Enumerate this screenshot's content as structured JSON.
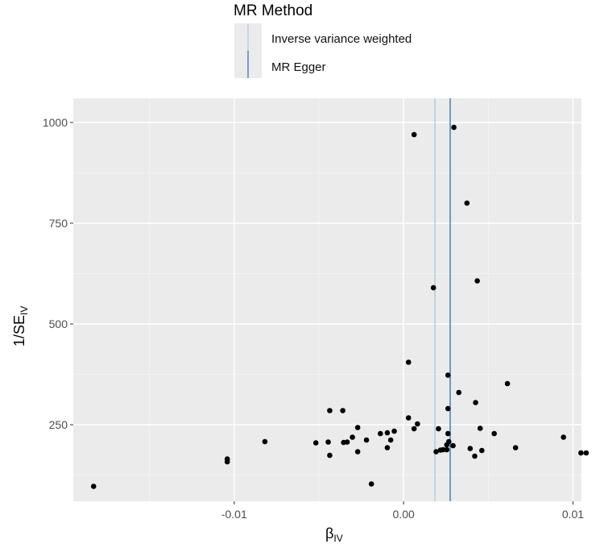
{
  "chart_data": {
    "type": "scatter",
    "title": "",
    "legend": {
      "title": "MR Method",
      "placement": "top",
      "entries": [
        {
          "name": "Inverse variance weighted",
          "color": "#9ecae1"
        },
        {
          "name": "MR Egger",
          "color": "#2171b5"
        }
      ]
    },
    "xlabel": {
      "main": "β",
      "sub": "IV"
    },
    "ylabel": {
      "main": "1/SE",
      "sub": "IV"
    },
    "xlim": [
      -0.0195,
      0.0105
    ],
    "ylim": [
      60,
      1060
    ],
    "xticks": [
      -0.01,
      0,
      0.01
    ],
    "xtick_labels": [
      "-0.01",
      "0.00",
      "0.01"
    ],
    "yticks": [
      250,
      500,
      750,
      1000
    ],
    "ytick_labels": [
      "250",
      "500",
      "750",
      "1000"
    ],
    "panel_background": "#ebebeb",
    "grid": true,
    "point_color": "#000000",
    "vlines": [
      {
        "method": "Inverse variance weighted",
        "x": 0.00185,
        "color": "#9ecae1"
      },
      {
        "method": "MR Egger",
        "x": 0.00275,
        "color": "#2171b5"
      }
    ],
    "points": [
      {
        "x": 0.00062,
        "y": 970
      },
      {
        "x": 0.00297,
        "y": 988
      },
      {
        "x": 0.00374,
        "y": 800
      },
      {
        "x": 0.00176,
        "y": 590
      },
      {
        "x": 0.00435,
        "y": 607
      },
      {
        "x": 0.00029,
        "y": 405
      },
      {
        "x": 0.00262,
        "y": 373
      },
      {
        "x": 0.00613,
        "y": 352
      },
      {
        "x": 0.00326,
        "y": 330
      },
      {
        "x": 0.00425,
        "y": 305
      },
      {
        "x": 0.00262,
        "y": 290
      },
      {
        "x": -0.00436,
        "y": 285
      },
      {
        "x": -0.00359,
        "y": 285
      },
      {
        "x": 0.00029,
        "y": 267
      },
      {
        "x": 0.00082,
        "y": 252
      },
      {
        "x": -0.00271,
        "y": 243
      },
      {
        "x": 0.00062,
        "y": 240
      },
      {
        "x": 0.00206,
        "y": 240
      },
      {
        "x": 0.00452,
        "y": 241
      },
      {
        "x": -0.00055,
        "y": 234
      },
      {
        "x": -0.00096,
        "y": 230
      },
      {
        "x": 0.00262,
        "y": 228
      },
      {
        "x": -0.00137,
        "y": 228
      },
      {
        "x": 0.00535,
        "y": 228
      },
      {
        "x": 0.00944,
        "y": 219
      },
      {
        "x": -0.00302,
        "y": 219
      },
      {
        "x": -0.00076,
        "y": 212
      },
      {
        "x": -0.00219,
        "y": 212
      },
      {
        "x": 0.00267,
        "y": 208
      },
      {
        "x": -0.00819,
        "y": 208
      },
      {
        "x": -0.00445,
        "y": 207
      },
      {
        "x": -0.00354,
        "y": 206
      },
      {
        "x": -0.00518,
        "y": 205
      },
      {
        "x": -0.00333,
        "y": 207
      },
      {
        "x": 0.00255,
        "y": 200
      },
      {
        "x": 0.00292,
        "y": 198
      },
      {
        "x": -0.00096,
        "y": 193
      },
      {
        "x": 0.00661,
        "y": 193
      },
      {
        "x": 0.00393,
        "y": 191
      },
      {
        "x": 0.00233,
        "y": 188
      },
      {
        "x": 0.00218,
        "y": 187
      },
      {
        "x": 0.00462,
        "y": 186
      },
      {
        "x": 0.00255,
        "y": 188
      },
      {
        "x": -0.00271,
        "y": 183
      },
      {
        "x": 0.00192,
        "y": 183
      },
      {
        "x": 0.01047,
        "y": 180
      },
      {
        "x": 0.01078,
        "y": 180
      },
      {
        "x": -0.00436,
        "y": 174
      },
      {
        "x": 0.0042,
        "y": 172
      },
      {
        "x": -0.01041,
        "y": 165
      },
      {
        "x": -0.01041,
        "y": 158
      },
      {
        "x": -0.0019,
        "y": 103
      },
      {
        "x": -0.0183,
        "y": 97
      }
    ]
  }
}
